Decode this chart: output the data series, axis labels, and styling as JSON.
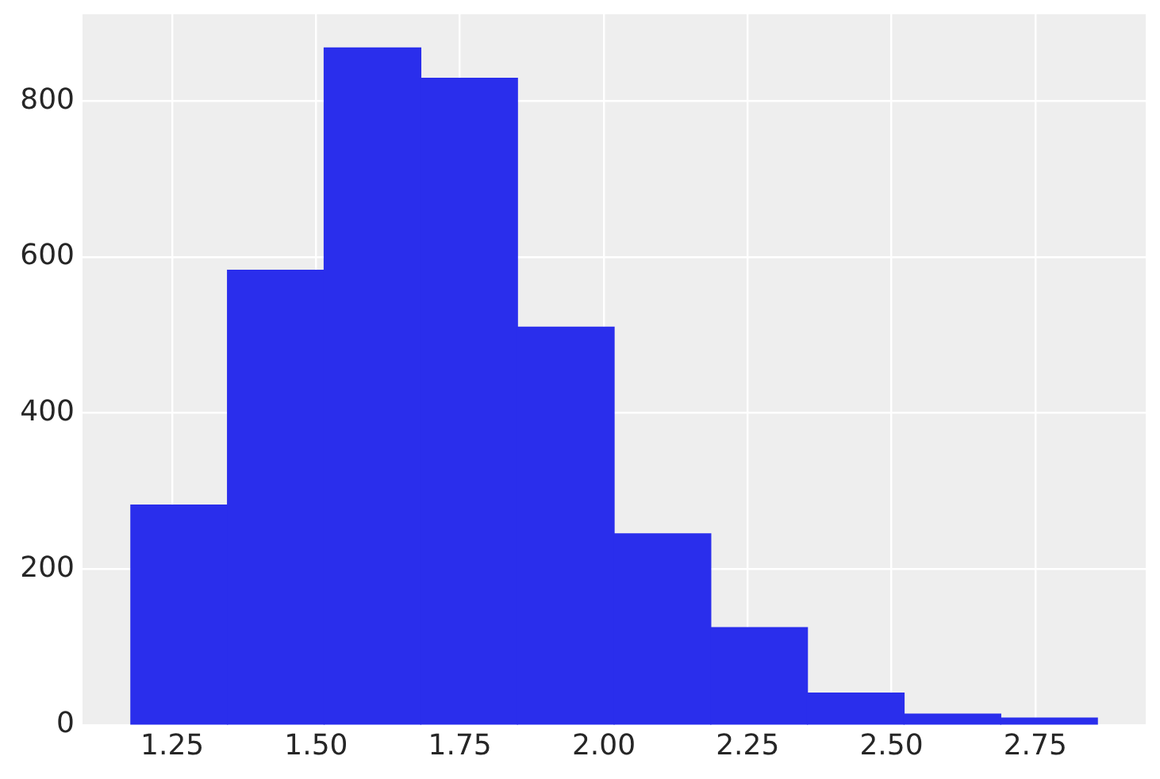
{
  "chart_data": {
    "type": "histogram",
    "bins": [
      1.178,
      1.346,
      1.514,
      1.682,
      1.85,
      2.018,
      2.186,
      2.354,
      2.522,
      2.69,
      2.858
    ],
    "values": [
      282,
      583,
      868,
      829,
      510,
      245,
      125,
      41,
      14,
      9
    ],
    "color": "#2a2eec",
    "xlim": [
      1.094,
      2.942
    ],
    "ylim": [
      0,
      911
    ],
    "xticks": [
      1.25,
      {
        "value": 1.5,
        "label": "1.50"
      },
      1.75,
      {
        "value": 2,
        "label": "2.00"
      },
      2.25,
      {
        "value": 2.5,
        "label": "2.50"
      },
      2.75
    ],
    "yticks": [
      0,
      200,
      400,
      600,
      800
    ],
    "grid": true
  }
}
